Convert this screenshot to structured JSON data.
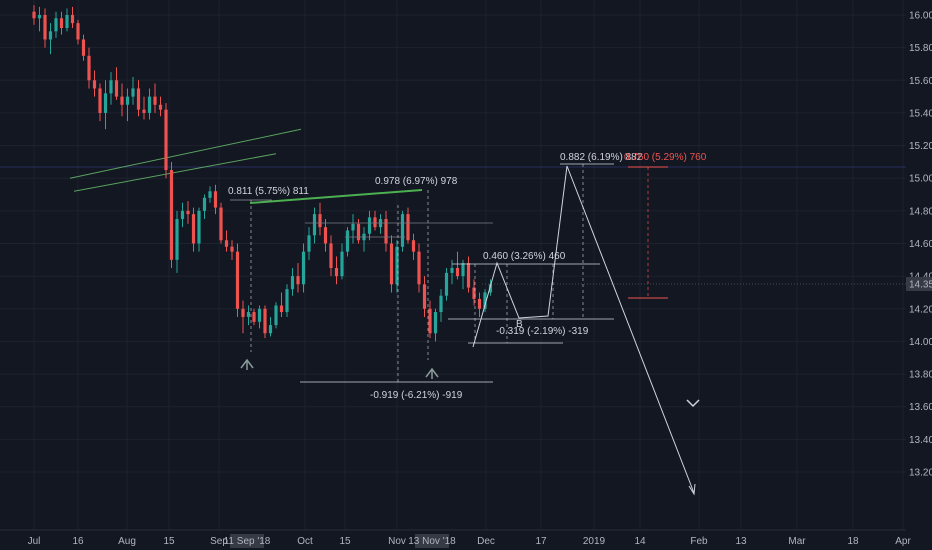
{
  "chart_data": {
    "type": "candlestick",
    "title": "",
    "price_axis": {
      "ticks": [
        "16.000",
        "15.800",
        "15.600",
        "15.400",
        "15.200",
        "15.000",
        "14.800",
        "14.600",
        "14.400",
        "14.200",
        "14.000",
        "13.800",
        "13.600",
        "13.400",
        "13.200"
      ],
      "range": [
        13.1,
        16.05
      ],
      "last_price": "14.352"
    },
    "time_axis": {
      "ticks": [
        "Jul",
        "16",
        "Aug",
        "15",
        "Sep",
        "Oct",
        "15",
        "Nov",
        "Dec",
        "17",
        "2019",
        "14",
        "Feb",
        "13",
        "Mar",
        "18",
        "Apr"
      ],
      "highlighted": [
        "11 Sep '18",
        "13 Nov '18"
      ]
    },
    "candles": [
      {
        "o": 16.02,
        "h": 16.06,
        "l": 15.94,
        "c": 15.98
      },
      {
        "o": 15.98,
        "h": 16.05,
        "l": 15.9,
        "c": 16.0
      },
      {
        "o": 16.0,
        "h": 16.04,
        "l": 15.8,
        "c": 15.85
      },
      {
        "o": 15.85,
        "h": 15.95,
        "l": 15.76,
        "c": 15.9
      },
      {
        "o": 15.9,
        "h": 16.02,
        "l": 15.86,
        "c": 15.98
      },
      {
        "o": 15.98,
        "h": 16.02,
        "l": 15.88,
        "c": 15.92
      },
      {
        "o": 15.92,
        "h": 16.04,
        "l": 15.9,
        "c": 16.0
      },
      {
        "o": 16.0,
        "h": 16.05,
        "l": 15.92,
        "c": 15.95
      },
      {
        "o": 15.95,
        "h": 15.97,
        "l": 15.82,
        "c": 15.85
      },
      {
        "o": 15.85,
        "h": 15.88,
        "l": 15.72,
        "c": 15.75
      },
      {
        "o": 15.75,
        "h": 15.8,
        "l": 15.55,
        "c": 15.6
      },
      {
        "o": 15.6,
        "h": 15.66,
        "l": 15.5,
        "c": 15.55
      },
      {
        "o": 15.55,
        "h": 15.58,
        "l": 15.35,
        "c": 15.4
      },
      {
        "o": 15.4,
        "h": 15.6,
        "l": 15.3,
        "c": 15.52
      },
      {
        "o": 15.52,
        "h": 15.65,
        "l": 15.45,
        "c": 15.6
      },
      {
        "o": 15.6,
        "h": 15.68,
        "l": 15.48,
        "c": 15.5
      },
      {
        "o": 15.5,
        "h": 15.58,
        "l": 15.38,
        "c": 15.45
      },
      {
        "o": 15.45,
        "h": 15.55,
        "l": 15.35,
        "c": 15.5
      },
      {
        "o": 15.5,
        "h": 15.62,
        "l": 15.45,
        "c": 15.55
      },
      {
        "o": 15.55,
        "h": 15.6,
        "l": 15.38,
        "c": 15.42
      },
      {
        "o": 15.42,
        "h": 15.5,
        "l": 15.36,
        "c": 15.4
      },
      {
        "o": 15.4,
        "h": 15.55,
        "l": 15.36,
        "c": 15.5
      },
      {
        "o": 15.5,
        "h": 15.58,
        "l": 15.4,
        "c": 15.45
      },
      {
        "o": 15.45,
        "h": 15.5,
        "l": 15.38,
        "c": 15.42
      },
      {
        "o": 15.42,
        "h": 15.46,
        "l": 15.0,
        "c": 15.05
      },
      {
        "o": 15.05,
        "h": 15.1,
        "l": 14.45,
        "c": 14.5
      },
      {
        "o": 14.5,
        "h": 14.8,
        "l": 14.42,
        "c": 14.75
      },
      {
        "o": 14.75,
        "h": 14.85,
        "l": 14.7,
        "c": 14.8
      },
      {
        "o": 14.8,
        "h": 14.86,
        "l": 14.72,
        "c": 14.78
      },
      {
        "o": 14.78,
        "h": 14.82,
        "l": 14.55,
        "c": 14.6
      },
      {
        "o": 14.6,
        "h": 14.82,
        "l": 14.55,
        "c": 14.8
      },
      {
        "o": 14.8,
        "h": 14.9,
        "l": 14.75,
        "c": 14.88
      },
      {
        "o": 14.88,
        "h": 14.95,
        "l": 14.85,
        "c": 14.92
      },
      {
        "o": 14.92,
        "h": 14.96,
        "l": 14.78,
        "c": 14.82
      },
      {
        "o": 14.82,
        "h": 14.85,
        "l": 14.6,
        "c": 14.62
      },
      {
        "o": 14.62,
        "h": 14.68,
        "l": 14.55,
        "c": 14.58
      },
      {
        "o": 14.58,
        "h": 14.62,
        "l": 14.5,
        "c": 14.55
      },
      {
        "o": 14.55,
        "h": 14.6,
        "l": 14.15,
        "c": 14.2
      },
      {
        "o": 14.2,
        "h": 14.25,
        "l": 14.05,
        "c": 14.15
      },
      {
        "o": 14.15,
        "h": 14.22,
        "l": 14.1,
        "c": 14.18
      },
      {
        "o": 14.18,
        "h": 14.2,
        "l": 14.1,
        "c": 14.12
      },
      {
        "o": 14.12,
        "h": 14.22,
        "l": 14.08,
        "c": 14.2
      },
      {
        "o": 14.2,
        "h": 14.22,
        "l": 14.02,
        "c": 14.05
      },
      {
        "o": 14.05,
        "h": 14.15,
        "l": 14.03,
        "c": 14.1
      },
      {
        "o": 14.1,
        "h": 14.24,
        "l": 14.08,
        "c": 14.22
      },
      {
        "o": 14.22,
        "h": 14.3,
        "l": 14.15,
        "c": 14.18
      },
      {
        "o": 14.18,
        "h": 14.35,
        "l": 14.15,
        "c": 14.32
      },
      {
        "o": 14.32,
        "h": 14.45,
        "l": 14.28,
        "c": 14.4
      },
      {
        "o": 14.4,
        "h": 14.48,
        "l": 14.3,
        "c": 14.35
      },
      {
        "o": 14.35,
        "h": 14.6,
        "l": 14.3,
        "c": 14.55
      },
      {
        "o": 14.55,
        "h": 14.7,
        "l": 14.5,
        "c": 14.65
      },
      {
        "o": 14.65,
        "h": 14.82,
        "l": 14.6,
        "c": 14.78
      },
      {
        "o": 14.78,
        "h": 14.85,
        "l": 14.65,
        "c": 14.7
      },
      {
        "o": 14.7,
        "h": 14.75,
        "l": 14.55,
        "c": 14.6
      },
      {
        "o": 14.6,
        "h": 14.65,
        "l": 14.4,
        "c": 14.45
      },
      {
        "o": 14.45,
        "h": 14.52,
        "l": 14.35,
        "c": 14.4
      },
      {
        "o": 14.4,
        "h": 14.6,
        "l": 14.38,
        "c": 14.55
      },
      {
        "o": 14.55,
        "h": 14.7,
        "l": 14.52,
        "c": 14.68
      },
      {
        "o": 14.68,
        "h": 14.78,
        "l": 14.6,
        "c": 14.72
      },
      {
        "o": 14.72,
        "h": 14.75,
        "l": 14.6,
        "c": 14.62
      },
      {
        "o": 14.62,
        "h": 14.7,
        "l": 14.55,
        "c": 14.66
      },
      {
        "o": 14.66,
        "h": 14.8,
        "l": 14.62,
        "c": 14.76
      },
      {
        "o": 14.76,
        "h": 14.8,
        "l": 14.68,
        "c": 14.7
      },
      {
        "o": 14.7,
        "h": 14.78,
        "l": 14.66,
        "c": 14.75
      },
      {
        "o": 14.75,
        "h": 14.8,
        "l": 14.55,
        "c": 14.6
      },
      {
        "o": 14.6,
        "h": 14.65,
        "l": 14.3,
        "c": 14.35
      },
      {
        "o": 14.35,
        "h": 14.62,
        "l": 14.3,
        "c": 14.58
      },
      {
        "o": 14.58,
        "h": 14.8,
        "l": 14.55,
        "c": 14.78
      },
      {
        "o": 14.78,
        "h": 14.82,
        "l": 14.6,
        "c": 14.62
      },
      {
        "o": 14.62,
        "h": 14.66,
        "l": 14.5,
        "c": 14.55
      },
      {
        "o": 14.55,
        "h": 14.6,
        "l": 14.3,
        "c": 14.35
      },
      {
        "o": 14.35,
        "h": 14.4,
        "l": 14.15,
        "c": 14.2
      },
      {
        "o": 14.2,
        "h": 14.25,
        "l": 14.02,
        "c": 14.05
      },
      {
        "o": 14.05,
        "h": 14.2,
        "l": 14.0,
        "c": 14.18
      },
      {
        "o": 14.18,
        "h": 14.32,
        "l": 14.12,
        "c": 14.28
      },
      {
        "o": 14.28,
        "h": 14.45,
        "l": 14.25,
        "c": 14.42
      },
      {
        "o": 14.42,
        "h": 14.5,
        "l": 14.35,
        "c": 14.45
      },
      {
        "o": 14.45,
        "h": 14.55,
        "l": 14.38,
        "c": 14.4
      },
      {
        "o": 14.4,
        "h": 14.5,
        "l": 14.32,
        "c": 14.48
      },
      {
        "o": 14.48,
        "h": 14.52,
        "l": 14.3,
        "c": 14.33
      },
      {
        "o": 14.33,
        "h": 14.38,
        "l": 14.22,
        "c": 14.26
      },
      {
        "o": 14.26,
        "h": 14.3,
        "l": 14.15,
        "c": 14.2
      },
      {
        "o": 14.2,
        "h": 14.32,
        "l": 14.18,
        "c": 14.3
      },
      {
        "o": 14.3,
        "h": 14.38,
        "l": 14.28,
        "c": 14.35
      }
    ],
    "trend_lines": [
      {
        "name": "upper-channel",
        "from": {
          "date": "2018-08-06",
          "price": 15.0
        },
        "to": {
          "date": "2019-03-25",
          "price": 15.3
        }
      },
      {
        "name": "lower-channel",
        "from": {
          "date": "2018-08-10",
          "price": 14.92
        },
        "to": {
          "date": "2019-02-28",
          "price": 15.15
        }
      }
    ],
    "measurements": [
      {
        "label": "0.811 (5.75%) 811",
        "color": "#ffffff"
      },
      {
        "label": "0.978 (6.97%) 978",
        "color": "#ffffff"
      },
      {
        "label": "0.460 (3.26%) 460",
        "color": "#ffffff"
      },
      {
        "label": "-0.319 (-2.19%) -319",
        "color": "#ffffff"
      },
      {
        "label": "-0.919 (-6.21%) -919",
        "color": "#ffffff"
      },
      {
        "label": "0.882 (6.19%) 882",
        "color": "#ffffff"
      },
      {
        "label": "0.760 (5.29%) 760",
        "color": "#ef5350"
      }
    ],
    "projection": [
      {
        "date": "2018-11-29",
        "price": 14.1
      },
      {
        "date": "2018-12-03",
        "price": 14.58
      },
      {
        "date": "2018-12-07",
        "price": 14.22
      },
      {
        "date": "2018-12-12",
        "price": 14.27
      },
      {
        "date": "2018-12-20",
        "price": 15.12
      },
      {
        "date": "2019-02-02",
        "price": 13.22
      }
    ],
    "markers": [
      {
        "char": "B",
        "date": "2018-12-07",
        "price": 14.22
      }
    ],
    "colors": {
      "background": "#131722",
      "up": "#26a69a",
      "down": "#ef5350",
      "trendline": "#66bb6a",
      "grid": "#1e222d",
      "crosshair": "#2a2e60"
    }
  }
}
